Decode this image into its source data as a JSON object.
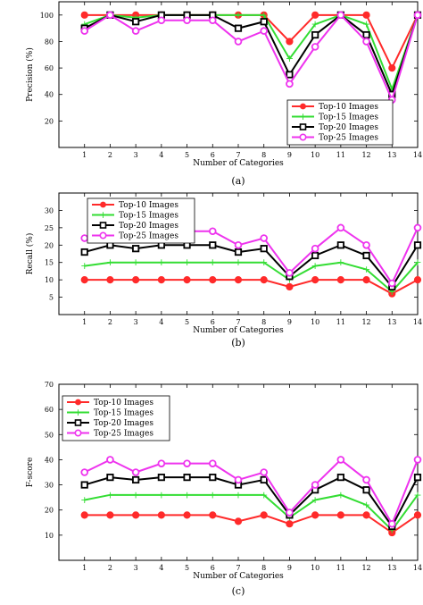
{
  "chart_data": [
    {
      "id": "a",
      "type": "line",
      "caption": "(a)",
      "xlabel": "Number of Categories",
      "ylabel": "Precision (%)",
      "x": [
        1,
        2,
        3,
        4,
        5,
        6,
        7,
        8,
        9,
        10,
        11,
        12,
        13,
        14
      ],
      "xlim": [
        0,
        14
      ],
      "ylim": [
        0,
        110
      ],
      "yticks": [
        20,
        40,
        60,
        80,
        100
      ],
      "legend_position": "bottom-right",
      "series": [
        {
          "name": "Top-10 Images",
          "color": "#ff2a2a",
          "values": [
            100,
            100,
            100,
            100,
            100,
            100,
            100,
            100,
            80,
            100,
            100,
            100,
            60,
            100
          ]
        },
        {
          "name": "Top-15 Images",
          "color": "#33dd33",
          "values": [
            93,
            100,
            98,
            100,
            100,
            100,
            100,
            100,
            67,
            93,
            100,
            93,
            44,
            100
          ]
        },
        {
          "name": "Top-20 Images",
          "color": "#000000",
          "values": [
            90,
            100,
            95,
            100,
            100,
            100,
            90,
            95,
            55,
            85,
            100,
            85,
            40,
            100
          ]
        },
        {
          "name": "Top-25 Images",
          "color": "#ee33ee",
          "values": [
            88,
            100,
            88,
            96,
            96,
            96,
            80,
            88,
            48,
            76,
            100,
            80,
            36,
            100
          ]
        }
      ]
    },
    {
      "id": "b",
      "type": "line",
      "caption": "(b)",
      "xlabel": "Number of Categories",
      "ylabel": "Recall (%)",
      "x": [
        1,
        2,
        3,
        4,
        5,
        6,
        7,
        8,
        9,
        10,
        11,
        12,
        13,
        14
      ],
      "xlim": [
        0,
        14
      ],
      "ylim": [
        0,
        35
      ],
      "yticks": [
        5,
        10,
        15,
        20,
        25,
        30
      ],
      "legend_position": "top-left",
      "series": [
        {
          "name": "Top-10 Images",
          "color": "#ff2a2a",
          "values": [
            10,
            10,
            10,
            10,
            10,
            10,
            10,
            10,
            8,
            10,
            10,
            10,
            6,
            10
          ]
        },
        {
          "name": "Top-15 Images",
          "color": "#33dd33",
          "values": [
            14,
            15,
            15,
            15,
            15,
            15,
            15,
            15,
            10,
            14,
            15,
            13,
            6.6,
            15
          ]
        },
        {
          "name": "Top-20 Images",
          "color": "#000000",
          "values": [
            18,
            20,
            19,
            20,
            20,
            20,
            18,
            19,
            11,
            17,
            20,
            17,
            8,
            20
          ]
        },
        {
          "name": "Top-25 Images",
          "color": "#ee33ee",
          "values": [
            22,
            25,
            22,
            24,
            24,
            24,
            20,
            22,
            12,
            19,
            25,
            20,
            9,
            25
          ]
        }
      ]
    },
    {
      "id": "c",
      "type": "line",
      "caption": "(c)",
      "xlabel": "Number of Categories",
      "ylabel": "F-score",
      "x": [
        1,
        2,
        3,
        4,
        5,
        6,
        7,
        8,
        9,
        10,
        11,
        12,
        13,
        14
      ],
      "xlim": [
        0,
        14
      ],
      "ylim": [
        0,
        70
      ],
      "yticks": [
        10,
        20,
        30,
        40,
        50,
        60,
        70
      ],
      "legend_position": "top-left",
      "series": [
        {
          "name": "Top-10 Images",
          "color": "#ff2a2a",
          "values": [
            18,
            18,
            18,
            18,
            18,
            18,
            15.5,
            18,
            14.5,
            18,
            18,
            18,
            11,
            18
          ]
        },
        {
          "name": "Top-15 Images",
          "color": "#33dd33",
          "values": [
            24,
            26,
            26,
            26,
            26,
            26,
            26,
            26,
            17,
            24,
            26,
            22,
            12,
            26
          ]
        },
        {
          "name": "Top-20 Images",
          "color": "#000000",
          "values": [
            30,
            33,
            32,
            33,
            33,
            33,
            30,
            32,
            18,
            28,
            33,
            28,
            13.5,
            33
          ]
        },
        {
          "name": "Top-25 Images",
          "color": "#ee33ee",
          "values": [
            35,
            40,
            35,
            38.5,
            38.5,
            38.5,
            32,
            35,
            19,
            30,
            40,
            32,
            14.5,
            40
          ]
        }
      ]
    }
  ]
}
